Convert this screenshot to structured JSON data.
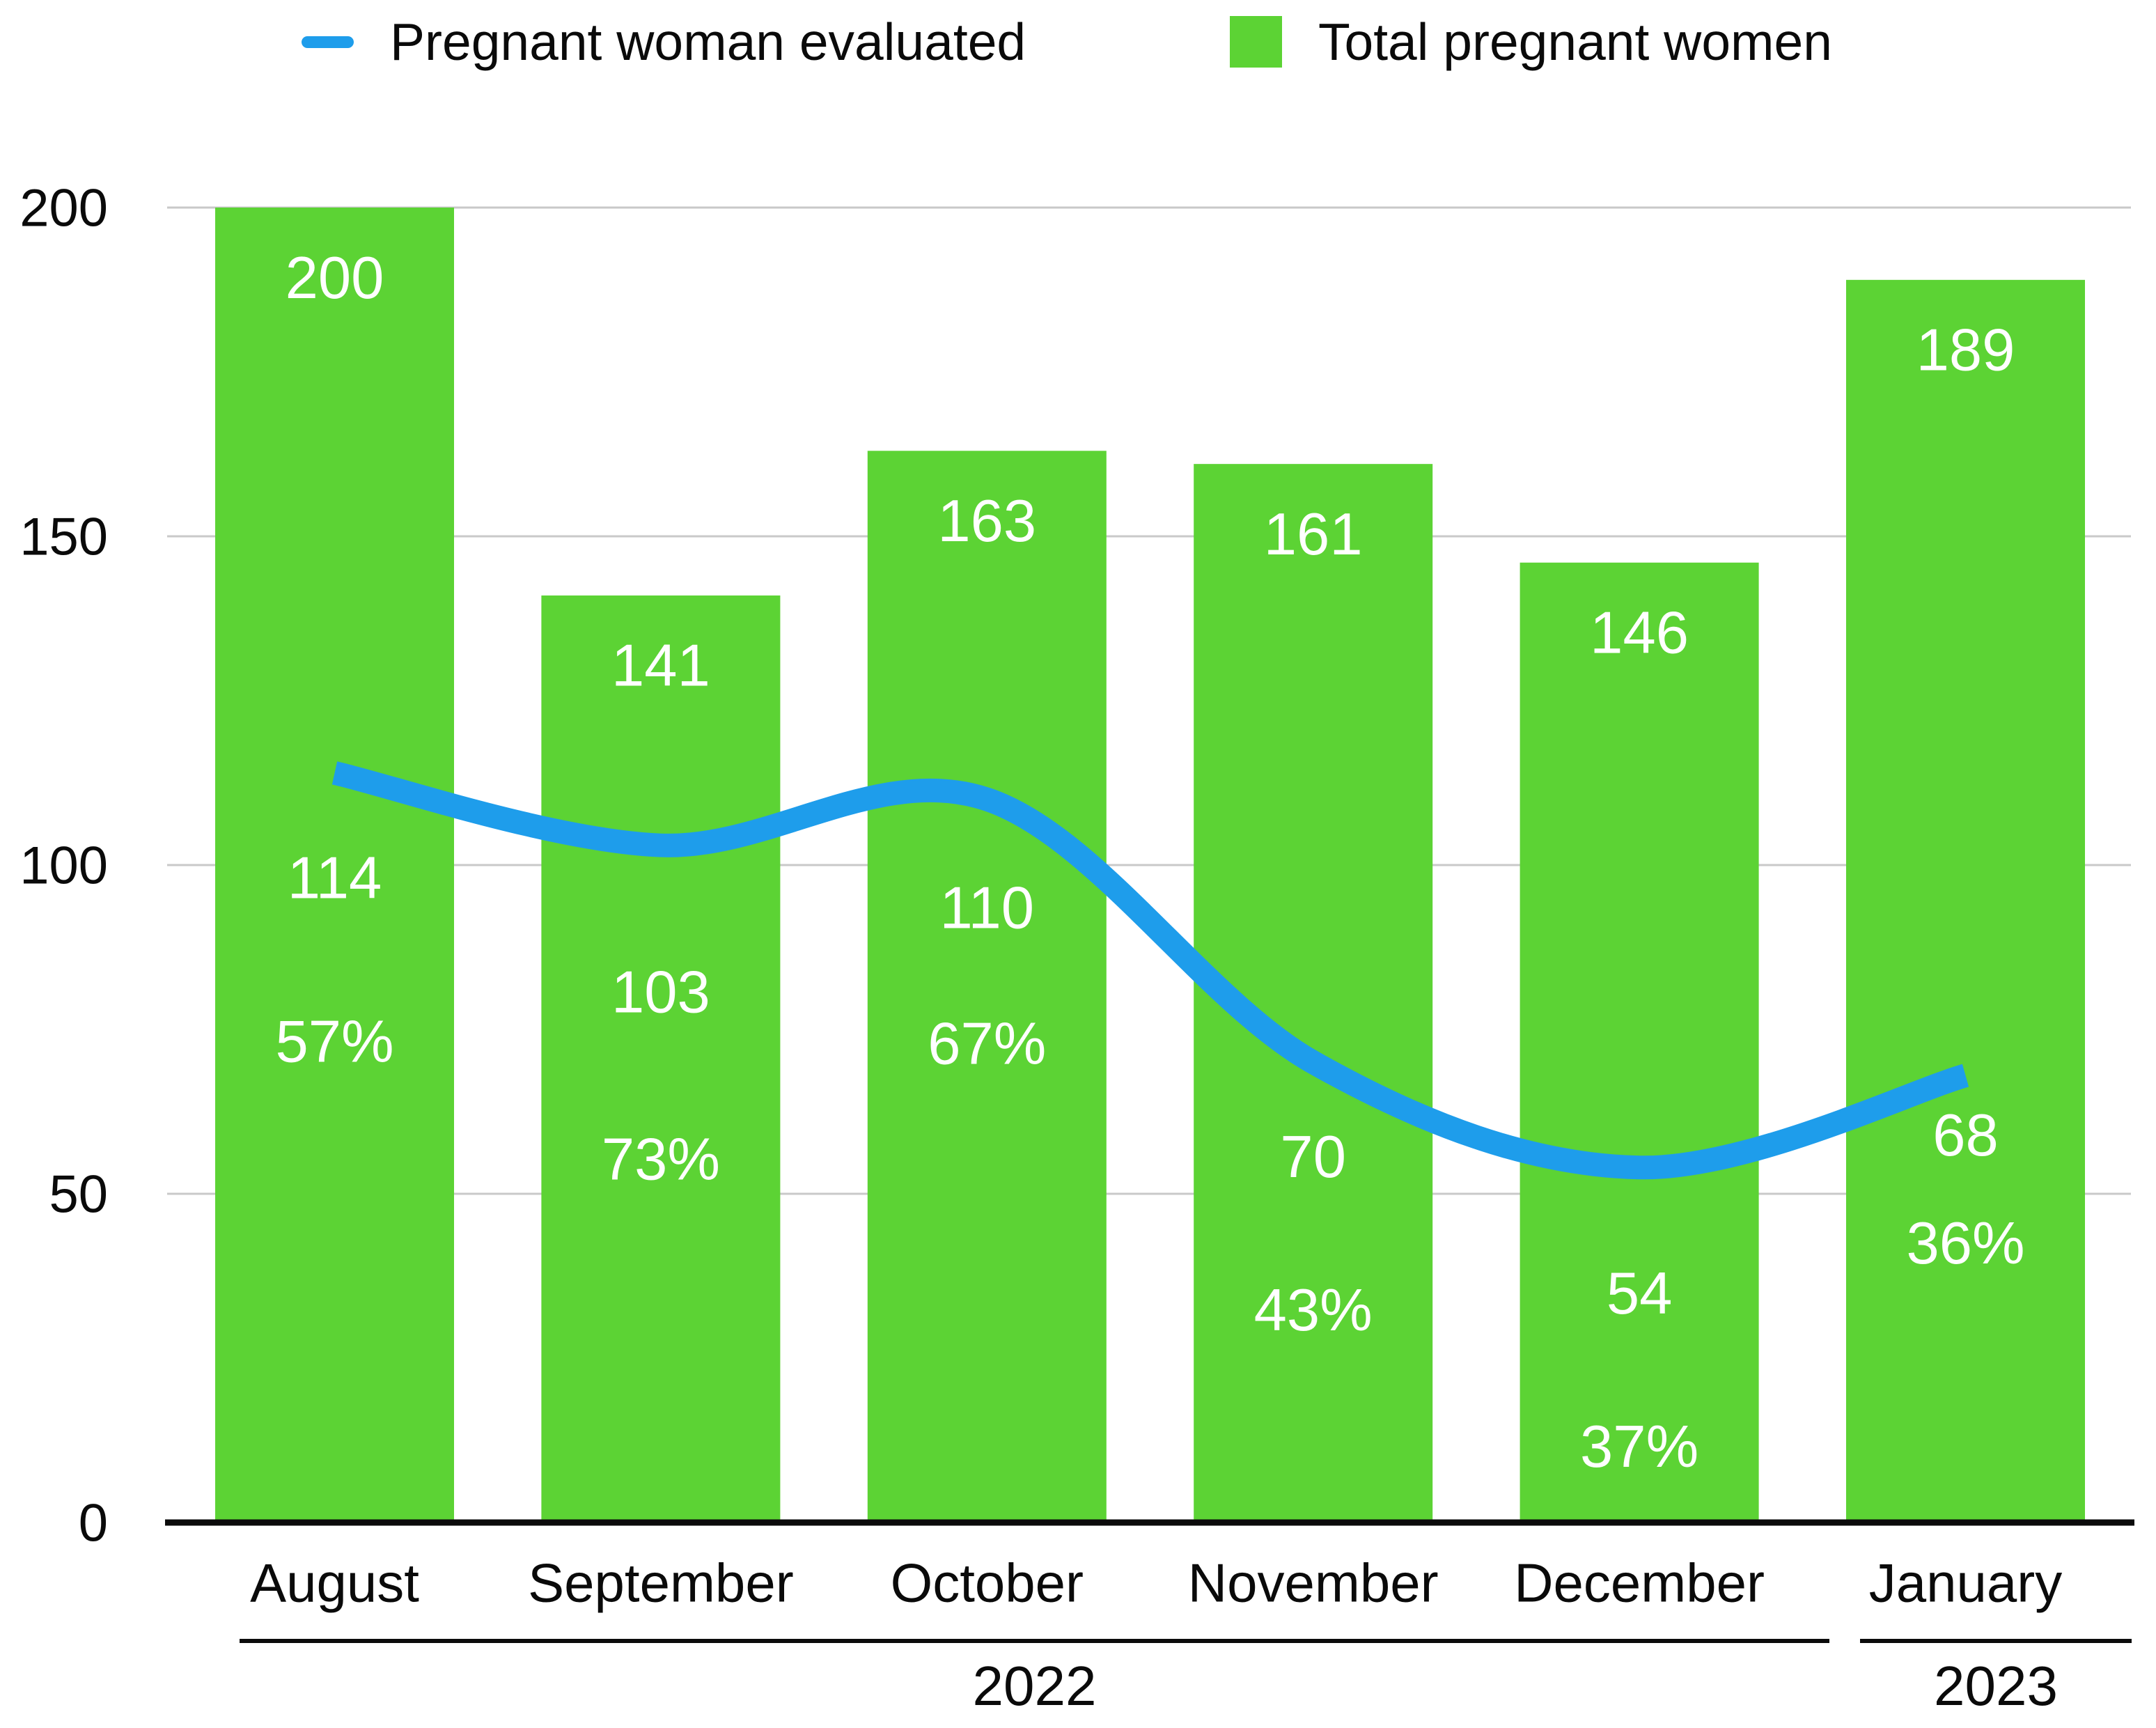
{
  "chart_data": {
    "type": "combo-bar-line",
    "categories": [
      "August",
      "September",
      "October",
      "November",
      "December",
      "January"
    ],
    "series": [
      {
        "name": "Pregnant woman evaluated",
        "type": "line",
        "color": "#1E9DEB",
        "values": [
          114,
          103,
          110,
          70,
          54,
          68
        ],
        "percent_labels": [
          "57%",
          "73%",
          "67%",
          "43%",
          "37%",
          "36%"
        ]
      },
      {
        "name": "Total pregnant women",
        "type": "bar",
        "color": "#5CD334",
        "values": [
          200,
          141,
          163,
          161,
          146,
          189
        ]
      }
    ],
    "y_axis": {
      "min": 0,
      "max": 200,
      "ticks": [
        0,
        50,
        100,
        150,
        200
      ],
      "gridlines": true
    },
    "x_groups": [
      {
        "label": "2022",
        "from": "August",
        "to": "December"
      },
      {
        "label": "2023",
        "from": "January",
        "to": "January"
      }
    ],
    "legend_position": "top",
    "bar_label_color": "#ffffff",
    "axis_text_color": "#0a0a0a",
    "gridline_color": "#c9c9c9",
    "axis_line_color": "#0b0b0b"
  }
}
